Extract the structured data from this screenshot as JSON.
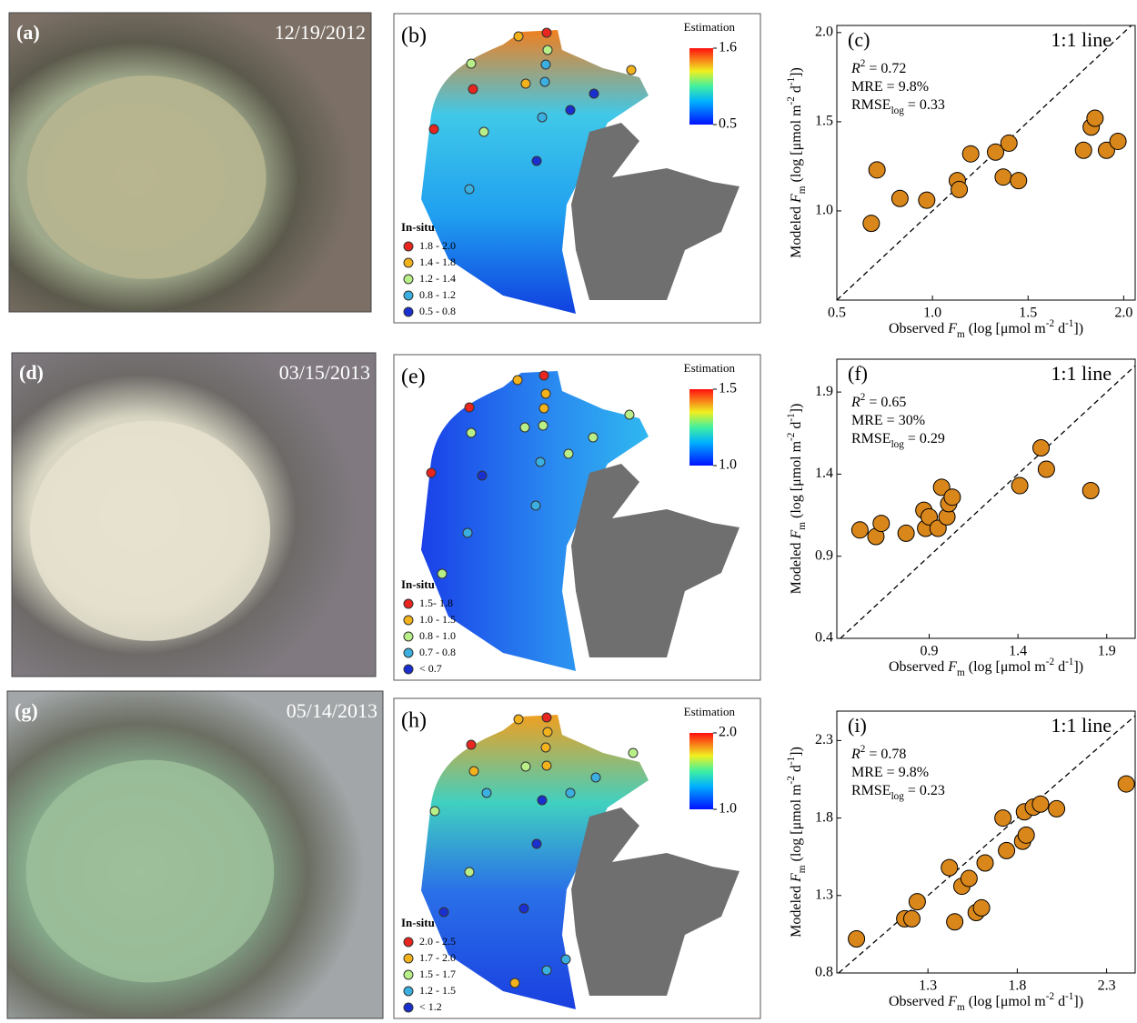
{
  "images": [
    {
      "label": "(a)",
      "date": "12/19/2012"
    },
    {
      "label": "(d)",
      "date": "03/15/2013"
    },
    {
      "label": "(g)",
      "date": "05/14/2013"
    }
  ],
  "maps": [
    {
      "label": "(b)",
      "colorbar_title": "Estimation",
      "colorbar_ticks": [
        1.6,
        0.5
      ],
      "legend_title": "In-situ",
      "legend": [
        {
          "label": "1.8 - 2.0",
          "color": "#e8251f"
        },
        {
          "label": "1.4 - 1.8",
          "color": "#f2b21c"
        },
        {
          "label": "1.2 - 1.4",
          "color": "#b8ef88"
        },
        {
          "label": "0.8 - 1.2",
          "color": "#3aafe0"
        },
        {
          "label": "0.5 - 0.8",
          "color": "#1a2fd0"
        }
      ]
    },
    {
      "label": "(e)",
      "colorbar_title": "Estimation",
      "colorbar_ticks": [
        1.5,
        {
          "value": 1,
          "label": "1.0"
        }
      ],
      "legend_title": "In-situ",
      "legend": [
        {
          "label": "1.5- 1.8",
          "color": "#e8251f"
        },
        {
          "label": "1.0 - 1.5",
          "color": "#f2b21c"
        },
        {
          "label": "0.8 - 1.0",
          "color": "#b8ef88"
        },
        {
          "label": "0.7 - 0.8",
          "color": "#3aafe0"
        },
        {
          "label": "< 0.7",
          "color": "#1a2fd0"
        }
      ]
    },
    {
      "label": "(h)",
      "colorbar_title": "Estimation",
      "colorbar_ticks": [
        {
          "value": 2,
          "label": "2.0"
        },
        {
          "value": 1,
          "label": "1.0"
        }
      ],
      "legend_title": "In-situ",
      "legend": [
        {
          "label": "2.0 - 2.5",
          "color": "#e8251f"
        },
        {
          "label": "1.7 - 2.0",
          "color": "#f2b21c"
        },
        {
          "label": "1.5 - 1.7",
          "color": "#b8ef88"
        },
        {
          "label": "1.2 - 1.5",
          "color": "#3aafe0"
        },
        {
          "label": "< 1.2",
          "color": "#1a2fd0"
        }
      ]
    }
  ],
  "chart_data": [
    {
      "type": "scatter",
      "label": "(c)",
      "annotation": "1:1 line",
      "stats": [
        [
          "R",
          "2",
          " = 0.72"
        ],
        [
          "MRE = 9.8%"
        ],
        [
          "RMSE",
          "log",
          " = 0.33"
        ]
      ],
      "x_label": [
        "Observed ",
        "F",
        "m",
        " (log [μmol m",
        "-2",
        " d",
        "-1",
        "])"
      ],
      "y_label": [
        "Modeled ",
        "F",
        "m",
        " (log [μmol m",
        "-2",
        " d",
        "-1",
        "])"
      ],
      "color": "#d9861a",
      "xlim": [
        0.5,
        2.06
      ],
      "ylim": [
        0.5,
        2.04
      ],
      "xticks": [
        0.5,
        {
          "value": 1,
          "label": "1.0"
        },
        1.5,
        {
          "value": 2,
          "label": "2.0"
        }
      ],
      "yticks": [
        {
          "value": 1,
          "label": "1.0"
        },
        1.5,
        {
          "value": 2,
          "label": "2.0"
        }
      ],
      "x": [
        0.68,
        0.71,
        0.83,
        0.97,
        1.13,
        1.14,
        1.2,
        1.33,
        1.4,
        1.37,
        1.45,
        1.79,
        1.83,
        1.85,
        1.91,
        1.97
      ],
      "values": [
        0.93,
        1.23,
        1.07,
        1.06,
        1.17,
        1.12,
        1.32,
        1.33,
        1.38,
        1.19,
        1.17,
        1.34,
        1.47,
        1.52,
        1.34,
        1.39
      ]
    },
    {
      "type": "scatter",
      "label": "(f)",
      "annotation": "1:1 line",
      "stats": [
        [
          "R",
          "2",
          " = 0.65"
        ],
        [
          "MRE = 30%"
        ],
        [
          "RMSE",
          "log",
          " = 0.29"
        ]
      ],
      "x_label": [
        "Observed ",
        "F",
        "m",
        " (log [μmol m",
        "-2",
        " d",
        "-1",
        "])"
      ],
      "y_label": [
        "Modeled ",
        "F",
        "m",
        " (log [μmol m",
        "-2",
        " d",
        "-1",
        "])"
      ],
      "color": "#d9861a",
      "xlim": [
        0.38,
        2.06
      ],
      "ylim": [
        0.4,
        2.1
      ],
      "xticks": [
        0.9,
        1.4,
        1.9
      ],
      "yticks": [
        0.4,
        0.9,
        1.4,
        1.9
      ],
      "x": [
        0.51,
        0.6,
        0.63,
        0.77,
        0.87,
        0.88,
        0.9,
        0.95,
        0.97,
        1.0,
        1.01,
        1.03,
        1.41,
        1.53,
        1.56,
        1.81
      ],
      "values": [
        1.06,
        1.02,
        1.1,
        1.04,
        1.18,
        1.07,
        1.14,
        1.07,
        1.32,
        1.14,
        1.22,
        1.26,
        1.33,
        1.56,
        1.43,
        1.3
      ]
    },
    {
      "type": "scatter",
      "label": "(i)",
      "annotation": "1:1 line",
      "stats": [
        [
          "R",
          "2",
          " = 0.78"
        ],
        [
          "MRE = 9.8%"
        ],
        [
          "RMSE",
          "log",
          " = 0.23"
        ]
      ],
      "x_label": [
        "Observed ",
        "F",
        "m",
        " (log [μmol m",
        "-2",
        " d",
        "-1",
        "])"
      ],
      "y_label": [
        "Modeled ",
        "F",
        "m",
        " (log [μmol m",
        "-2",
        " d",
        "-1",
        "])"
      ],
      "color": "#d9861a",
      "xlim": [
        0.79,
        2.46
      ],
      "ylim": [
        0.8,
        2.49
      ],
      "xticks": [
        1.3,
        1.8,
        2.3
      ],
      "yticks": [
        0.8,
        1.3,
        1.8,
        2.3
      ],
      "x": [
        0.9,
        1.17,
        1.21,
        1.24,
        1.42,
        1.45,
        1.49,
        1.53,
        1.57,
        1.6,
        1.62,
        1.72,
        1.74,
        1.83,
        1.85,
        1.84,
        1.89,
        1.93,
        2.02,
        2.41
      ],
      "values": [
        1.02,
        1.15,
        1.15,
        1.26,
        1.48,
        1.13,
        1.36,
        1.41,
        1.19,
        1.22,
        1.51,
        1.8,
        1.59,
        1.65,
        1.69,
        1.84,
        1.87,
        1.89,
        1.86,
        2.02
      ]
    }
  ]
}
